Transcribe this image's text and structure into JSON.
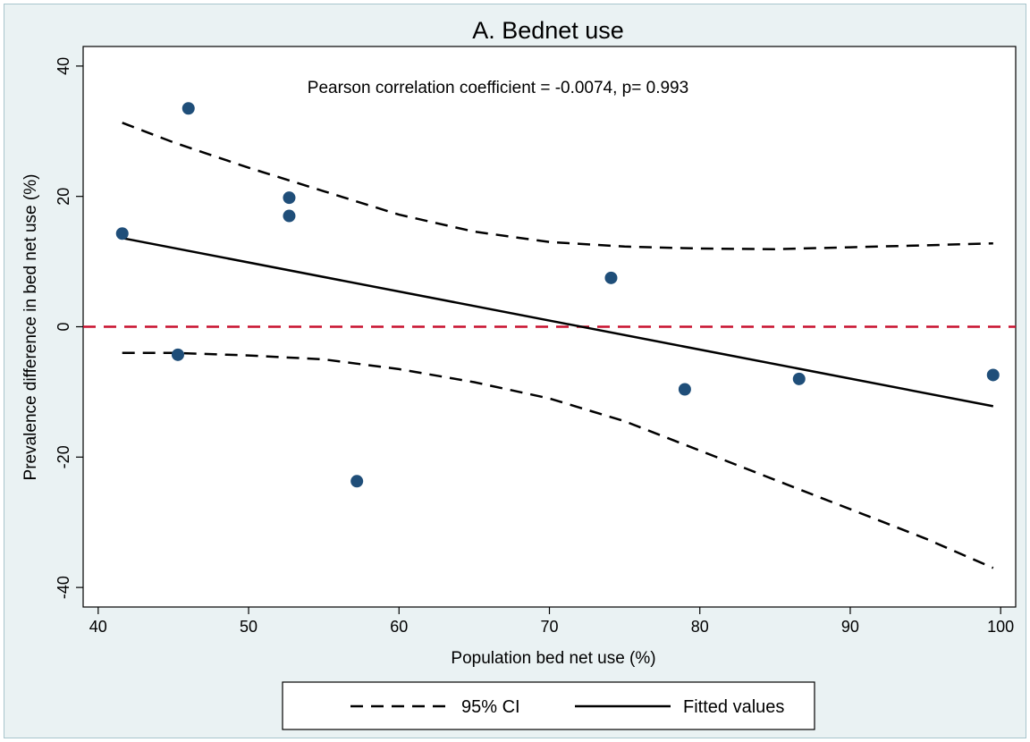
{
  "chart_data": {
    "type": "scatter",
    "title": "A. Bednet use",
    "xlabel": "Population bed net use (%)",
    "ylabel": "Prevalence difference in bed net use (%)",
    "xlim": [
      39,
      101
    ],
    "ylim": [
      -43,
      43
    ],
    "xticks": [
      40,
      50,
      60,
      70,
      80,
      90,
      100
    ],
    "yticks": [
      -40,
      -20,
      0,
      20,
      40
    ],
    "annotation": "Pearson correlation coefficient = -0.0074, p= 0.993",
    "reference_line": {
      "y": 0,
      "color": "#c8102e",
      "style": "dashed"
    },
    "points": {
      "color": "#1f4e79",
      "x": [
        41.6,
        45.3,
        46.0,
        52.7,
        52.7,
        57.2,
        74.1,
        79.0,
        86.6,
        99.5
      ],
      "y": [
        14.3,
        -4.3,
        33.5,
        19.8,
        17.0,
        -23.7,
        7.5,
        -9.6,
        -8.0,
        -7.4
      ]
    },
    "fitted": {
      "x": [
        41.6,
        99.5
      ],
      "y": [
        13.6,
        -12.2
      ]
    },
    "ci_upper": {
      "x": [
        41.6,
        45,
        50,
        55,
        60,
        65,
        70,
        75,
        80,
        85,
        90,
        95,
        99.5
      ],
      "y": [
        31.3,
        28.3,
        24.4,
        20.8,
        17.2,
        14.6,
        13.0,
        12.3,
        12.0,
        11.9,
        12.2,
        12.5,
        12.8
      ]
    },
    "ci_lower": {
      "x": [
        41.6,
        45,
        50,
        55,
        60,
        65,
        70,
        75,
        80,
        85,
        90,
        95,
        99.5
      ],
      "y": [
        -4.0,
        -4.0,
        -4.4,
        -5.0,
        -6.5,
        -8.5,
        -11.0,
        -14.5,
        -19.0,
        -23.5,
        -28.0,
        -32.5,
        -37.0
      ]
    },
    "legend": {
      "position": "bottom",
      "entries": [
        {
          "label": "95% CI",
          "style": "dashed"
        },
        {
          "label": "Fitted values",
          "style": "solid"
        }
      ]
    }
  }
}
